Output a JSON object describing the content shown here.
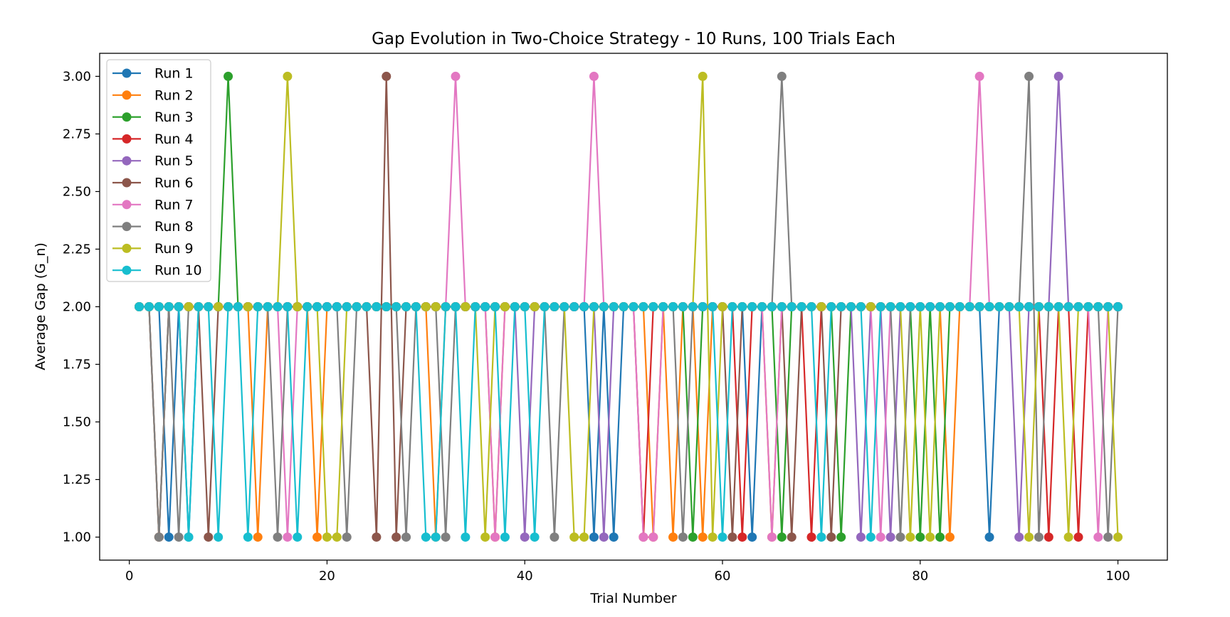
{
  "chart_data": {
    "type": "line",
    "title": "Gap Evolution in Two-Choice Strategy - 10 Runs, 100 Trials Each",
    "xlabel": "Trial Number",
    "ylabel": "Average Gap (G_n)",
    "xlim": [
      -3,
      105
    ],
    "ylim": [
      0.9,
      3.1
    ],
    "xticks": [
      0,
      20,
      40,
      60,
      80,
      100
    ],
    "yticks": [
      1.0,
      1.25,
      1.5,
      1.75,
      2.0,
      2.25,
      2.5,
      2.75,
      3.0
    ],
    "ytick_labels": [
      "1.00",
      "1.25",
      "1.50",
      "1.75",
      "2.00",
      "2.25",
      "2.50",
      "2.75",
      "3.00"
    ],
    "grid": false,
    "legend_position": "upper-left",
    "x": [
      1,
      2,
      3,
      4,
      5,
      6,
      7,
      8,
      9,
      10,
      11,
      12,
      13,
      14,
      15,
      16,
      17,
      18,
      19,
      20,
      21,
      22,
      23,
      24,
      25,
      26,
      27,
      28,
      29,
      30,
      31,
      32,
      33,
      34,
      35,
      36,
      37,
      38,
      39,
      40,
      41,
      42,
      43,
      44,
      45,
      46,
      47,
      48,
      49,
      50,
      51,
      52,
      53,
      54,
      55,
      56,
      57,
      58,
      59,
      60,
      61,
      62,
      63,
      64,
      65,
      66,
      67,
      68,
      69,
      70,
      71,
      72,
      73,
      74,
      75,
      76,
      77,
      78,
      79,
      80,
      81,
      82,
      83,
      84,
      85,
      86,
      87,
      88,
      89,
      90,
      91,
      92,
      93,
      94,
      95,
      96,
      97,
      98,
      99,
      100
    ],
    "series": [
      {
        "name": "Run 1",
        "color": "#1f77b4",
        "low": [
          4,
          6,
          47,
          49,
          63,
          87
        ],
        "high": []
      },
      {
        "name": "Run 2",
        "color": "#ff7f0e",
        "low": [
          3,
          13,
          19,
          31,
          37,
          53,
          55,
          58,
          65,
          83
        ],
        "high": []
      },
      {
        "name": "Run 3",
        "color": "#2ca02c",
        "low": [
          57,
          66,
          72,
          80,
          82
        ],
        "high": [
          10
        ]
      },
      {
        "name": "Run 4",
        "color": "#d62728",
        "low": [
          52,
          62,
          69,
          93,
          96
        ],
        "high": []
      },
      {
        "name": "Run 5",
        "color": "#9467bd",
        "low": [
          40,
          48,
          74,
          77,
          90
        ],
        "high": [
          94
        ]
      },
      {
        "name": "Run 6",
        "color": "#8c564b",
        "low": [
          3,
          8,
          25,
          27,
          61,
          67,
          71
        ],
        "high": [
          26
        ]
      },
      {
        "name": "Run 7",
        "color": "#e377c2",
        "low": [
          16,
          37,
          52,
          53,
          65,
          76,
          98
        ],
        "high": [
          33,
          47,
          86
        ]
      },
      {
        "name": "Run 8",
        "color": "#7f7f7f",
        "low": [
          3,
          5,
          15,
          22,
          28,
          32,
          43,
          56,
          66,
          78,
          92,
          99
        ],
        "high": [
          66,
          91
        ]
      },
      {
        "name": "Run 9",
        "color": "#bcbd22",
        "low": [
          20,
          21,
          36,
          45,
          46,
          59,
          79,
          81,
          91,
          95,
          100
        ],
        "high": [
          16,
          58
        ]
      },
      {
        "name": "Run 10",
        "color": "#17becf",
        "low": [
          6,
          9,
          12,
          17,
          30,
          31,
          34,
          38,
          41,
          60,
          70,
          75
        ],
        "high": []
      }
    ]
  }
}
